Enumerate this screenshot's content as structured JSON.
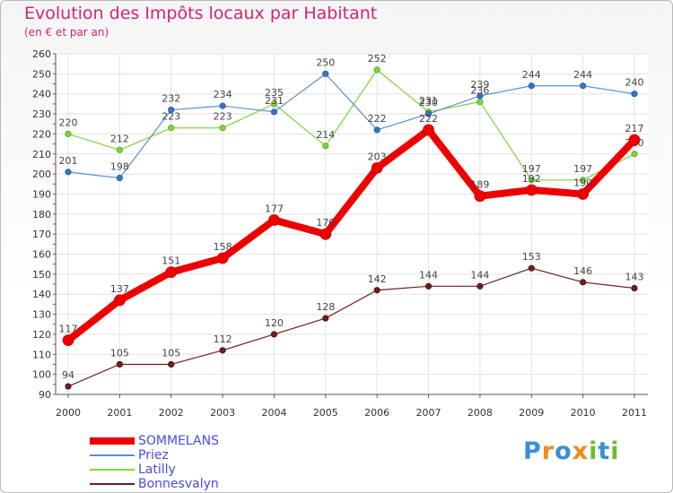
{
  "title": "Evolution des Impôts locaux par Habitant",
  "subtitle": "(en € et par an)",
  "logo": "Proxiti",
  "chart_data": {
    "type": "line",
    "title": "Evolution des Impôts locaux par Habitant",
    "ylabel": "(en € et par an)",
    "xlabel": "",
    "ylim": [
      90,
      260
    ],
    "yticks": [
      90,
      100,
      110,
      120,
      130,
      140,
      150,
      160,
      170,
      180,
      190,
      200,
      210,
      220,
      230,
      240,
      250,
      260
    ],
    "categories": [
      "2000",
      "2001",
      "2002",
      "2003",
      "2004",
      "2005",
      "2006",
      "2007",
      "2008",
      "2009",
      "2010",
      "2011"
    ],
    "legend": "bottom-left",
    "grid": true,
    "series": [
      {
        "name": "SOMMELANS",
        "color": "#ee0000",
        "values": [
          117,
          137,
          151,
          158,
          177,
          170,
          203,
          222,
          189,
          192,
          190,
          217
        ]
      },
      {
        "name": "Priez",
        "color": "#5a8fd0",
        "values": [
          201,
          198,
          232,
          234,
          231,
          250,
          222,
          230,
          239,
          244,
          244,
          240
        ]
      },
      {
        "name": "Latilly",
        "color": "#7fd33a",
        "values": [
          220,
          212,
          223,
          223,
          235,
          214,
          252,
          231,
          236,
          197,
          197,
          210
        ]
      },
      {
        "name": "Bonnesvalyn",
        "color": "#6b1f1f",
        "values": [
          94,
          105,
          105,
          112,
          120,
          128,
          142,
          144,
          144,
          153,
          146,
          143
        ]
      }
    ]
  }
}
